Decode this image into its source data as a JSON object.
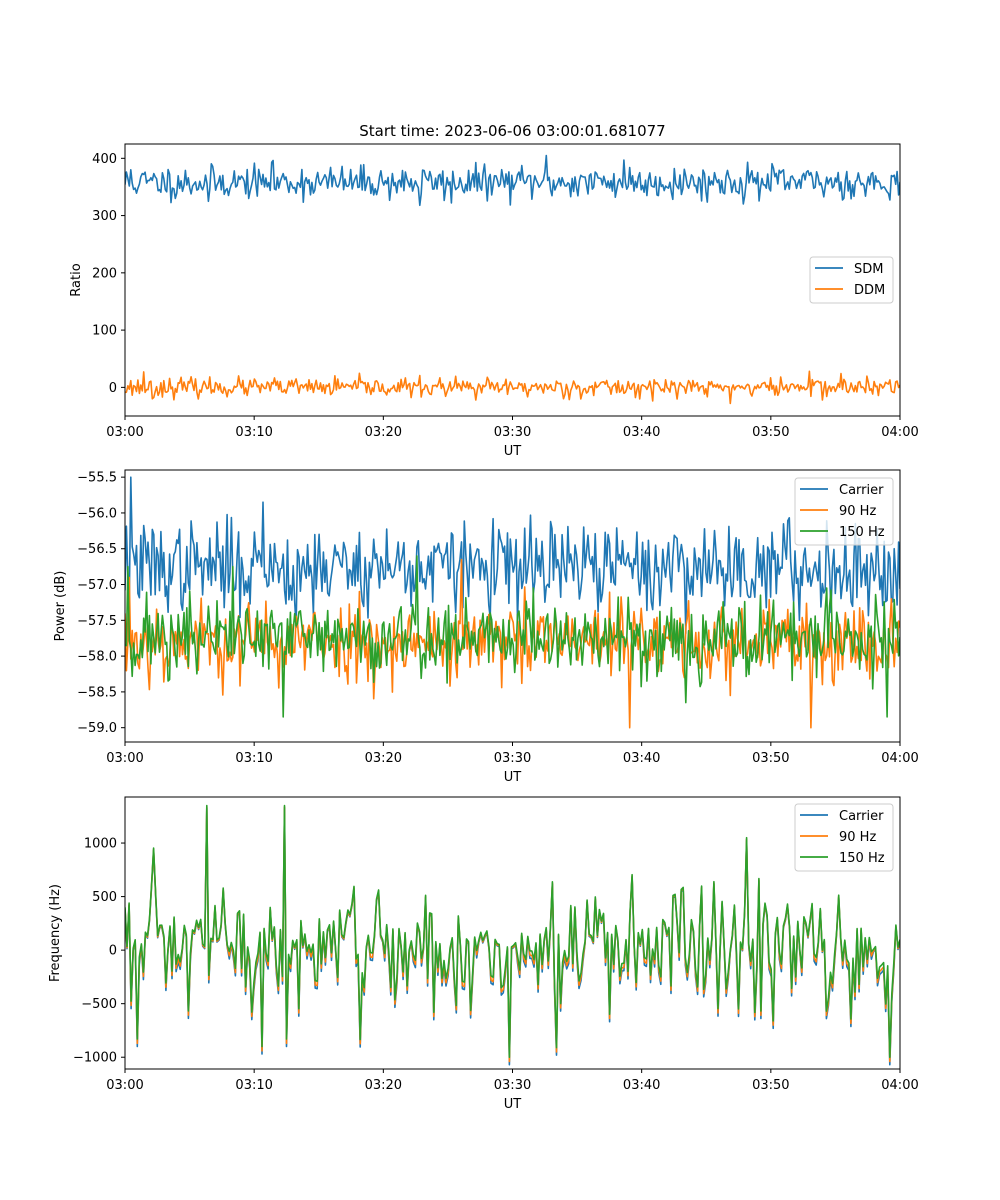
{
  "title": "Start time: 2023-06-06 03:00:01.681077",
  "chart_data": [
    {
      "type": "line",
      "xlabel": "UT",
      "ylabel": "Ratio",
      "xlim": [
        0,
        60
      ],
      "ylim": [
        -50,
        425
      ],
      "xticks": [
        0,
        10,
        20,
        30,
        40,
        50,
        60
      ],
      "xtick_labels": [
        "03:00",
        "03:10",
        "03:20",
        "03:30",
        "03:40",
        "03:50",
        "04:00"
      ],
      "yticks": [
        0,
        100,
        200,
        300,
        400
      ],
      "ytick_labels": [
        "0",
        "100",
        "200",
        "300",
        "400"
      ],
      "legend": "center-right",
      "grid": false,
      "series": [
        {
          "name": "SDM",
          "color": "#1f77b4",
          "mean": 358,
          "noise": 14,
          "n": 540,
          "seed": 11,
          "peaks": [
            [
              0.5,
              380
            ],
            [
              3.9,
              330
            ],
            [
              6.5,
              325
            ],
            [
              11.4,
              393
            ],
            [
              22.8,
              318
            ],
            [
              25.3,
              322
            ],
            [
              32.6,
              405
            ],
            [
              38.6,
              397
            ],
            [
              48.2,
              393
            ],
            [
              59.3,
              370
            ]
          ]
        },
        {
          "name": "DDM",
          "color": "#ff7f0e",
          "mean": 0,
          "noise": 8,
          "n": 540,
          "seed": 23,
          "peaks": [
            [
              1.4,
              27
            ],
            [
              2.1,
              -20
            ],
            [
              27.2,
              -22
            ],
            [
              46.9,
              -28
            ],
            [
              53.0,
              28
            ],
            [
              55.4,
              24
            ]
          ]
        }
      ]
    },
    {
      "type": "line",
      "xlabel": "UT",
      "ylabel": "Power (dB)",
      "xlim": [
        0,
        60
      ],
      "ylim": [
        -59.2,
        -55.4
      ],
      "xticks": [
        0,
        10,
        20,
        30,
        40,
        50,
        60
      ],
      "xtick_labels": [
        "03:00",
        "03:10",
        "03:20",
        "03:30",
        "03:40",
        "03:50",
        "04:00"
      ],
      "yticks": [
        -59.0,
        -58.5,
        -58.0,
        -57.5,
        -57.0,
        -56.5,
        -56.0,
        -55.5
      ],
      "ytick_labels": [
        "−59.0",
        "−58.5",
        "−58.0",
        "−57.5",
        "−57.0",
        "−56.5",
        "−56.0",
        "−55.5"
      ],
      "legend": "upper-right",
      "grid": false,
      "series": [
        {
          "name": "Carrier",
          "color": "#1f77b4",
          "mean": -56.75,
          "noise": 0.3,
          "n": 540,
          "seed": 37,
          "peaks": [
            [
              0.4,
              -55.5
            ],
            [
              10.7,
              -55.85
            ],
            [
              13.3,
              -57.6
            ],
            [
              30.4,
              -57.5
            ],
            [
              40.9,
              -57.35
            ],
            [
              52.2,
              -57.5
            ],
            [
              59.5,
              -56.5
            ]
          ]
        },
        {
          "name": "90 Hz",
          "color": "#ff7f0e",
          "mean": -57.8,
          "noise": 0.28,
          "n": 540,
          "seed": 53,
          "peaks": [
            [
              0.3,
              -56.9
            ],
            [
              26.0,
              -56.65
            ],
            [
              39.1,
              -59.0
            ],
            [
              46.9,
              -58.55
            ],
            [
              53.1,
              -59.0
            ],
            [
              59.3,
              -57.2
            ]
          ]
        },
        {
          "name": "150 Hz",
          "color": "#2ca02c",
          "mean": -57.75,
          "noise": 0.28,
          "n": 540,
          "seed": 71,
          "peaks": [
            [
              0.2,
              -56.75
            ],
            [
              8.4,
              -56.75
            ],
            [
              12.3,
              -58.85
            ],
            [
              22.6,
              -56.6
            ],
            [
              31.6,
              -57.05
            ],
            [
              43.4,
              -58.65
            ],
            [
              54.3,
              -57.05
            ],
            [
              59.0,
              -58.85
            ]
          ]
        }
      ]
    },
    {
      "type": "line",
      "xlabel": "UT",
      "ylabel": "Frequency (Hz)",
      "xlim": [
        0,
        60
      ],
      "ylim": [
        -1110,
        1430
      ],
      "xticks": [
        0,
        10,
        20,
        30,
        40,
        50,
        60
      ],
      "xtick_labels": [
        "03:00",
        "03:10",
        "03:20",
        "03:30",
        "03:40",
        "03:50",
        "04:00"
      ],
      "yticks": [
        -1000,
        -500,
        0,
        500,
        1000
      ],
      "ytick_labels": [
        "−1000",
        "−500",
        "0",
        "500",
        "1000"
      ],
      "legend": "upper-right",
      "grid": false,
      "base": {
        "noise": 330,
        "n": 380,
        "seed": 97,
        "peaks": [
          [
            6.4,
            1350
          ],
          [
            12.4,
            1350
          ],
          [
            10.6,
            -900
          ],
          [
            29.7,
            -1000
          ],
          [
            33.4,
            -910
          ],
          [
            48.2,
            1050
          ],
          [
            59.2,
            -1000
          ],
          [
            1.0,
            -830
          ],
          [
            12.5,
            -830
          ]
        ]
      },
      "series": [
        {
          "name": "Carrier",
          "color": "#1f77b4",
          "offset": -70,
          "scale": 1.0
        },
        {
          "name": "90 Hz",
          "color": "#ff7f0e",
          "offset": -40,
          "scale": 1.0
        },
        {
          "name": "150 Hz",
          "color": "#2ca02c",
          "offset": 0,
          "scale": 1.0
        }
      ]
    }
  ]
}
